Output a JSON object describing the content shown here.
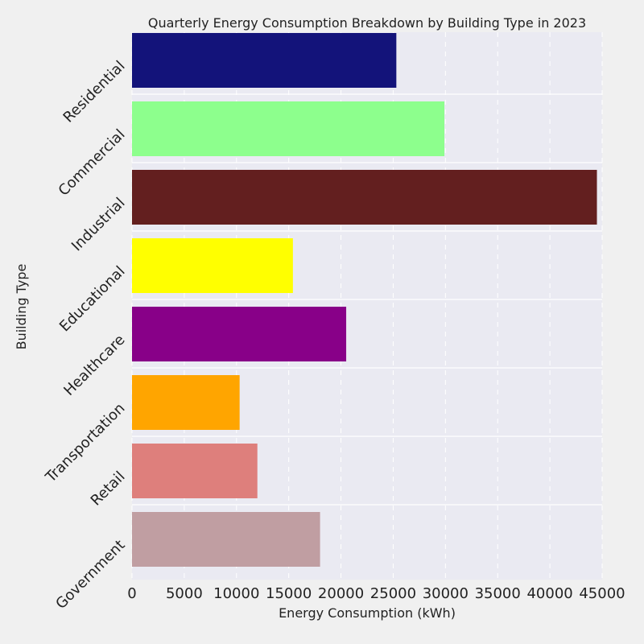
{
  "chart_data": {
    "type": "bar",
    "orientation": "horizontal",
    "title": "Quarterly Energy Consumption Breakdown by Building Type in 2023",
    "xlabel": "Energy Consumption (kWh)",
    "ylabel": "Building Type",
    "xlim": [
      0,
      45000
    ],
    "xticks": [
      "0",
      "5000",
      "10000",
      "15000",
      "20000",
      "25000",
      "30000",
      "35000",
      "40000",
      "45000"
    ],
    "grid": true,
    "categories": [
      "Residential",
      "Commercial",
      "Industrial",
      "Educational",
      "Healthcare",
      "Transportation",
      "Retail",
      "Government"
    ],
    "values": [
      25300,
      29900,
      44500,
      15400,
      20500,
      10300,
      12000,
      18000
    ],
    "colors": [
      "#13137a",
      "#8dff8d",
      "#631f1f",
      "#ffff00",
      "#880088",
      "#ffa500",
      "#de7f7c",
      "#c09ea2"
    ],
    "background_color": "#eaeaf2"
  }
}
